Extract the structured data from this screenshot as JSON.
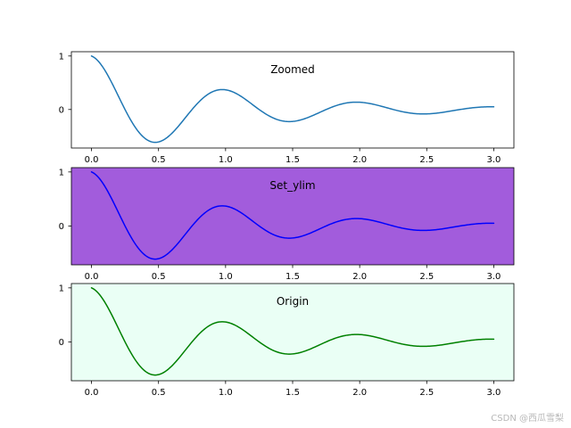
{
  "chart_data": [
    {
      "type": "line",
      "title": "Zoomed",
      "function": "exp(-t) * cos(2*pi*t)",
      "x_range": [
        0.0,
        3.0
      ],
      "xlim": [
        -0.15,
        3.15
      ],
      "ylim": [
        -0.72,
        1.08
      ],
      "x_ticks": [
        0.0,
        0.5,
        1.0,
        1.5,
        2.0,
        2.5,
        3.0
      ],
      "x_tick_labels": [
        "0.0",
        "0.5",
        "1.0",
        "1.5",
        "2.0",
        "2.5",
        "3.0"
      ],
      "y_ticks": [
        0,
        1
      ],
      "y_tick_labels": [
        "0",
        "1"
      ],
      "line_color": "#1f77b4",
      "background_color": "#ffffff",
      "grid": false,
      "series": [
        {
          "x": [
            0.0,
            0.25,
            0.47,
            0.75,
            0.97,
            1.25,
            1.47,
            1.75,
            1.97,
            2.25,
            2.47,
            2.75,
            3.0
          ],
          "values": [
            1.0,
            0.0,
            -0.62,
            0.0,
            0.37,
            0.0,
            -0.23,
            0.0,
            0.14,
            0.0,
            -0.08,
            0.0,
            0.05
          ]
        }
      ]
    },
    {
      "type": "line",
      "title": "Set_ylim",
      "function": "exp(-t) * cos(2*pi*t)",
      "x_range": [
        0.0,
        3.0
      ],
      "xlim": [
        -0.15,
        3.15
      ],
      "ylim": [
        -0.72,
        1.08
      ],
      "x_ticks": [
        0.0,
        0.5,
        1.0,
        1.5,
        2.0,
        2.5,
        3.0
      ],
      "x_tick_labels": [
        "0.0",
        "0.5",
        "1.0",
        "1.5",
        "2.0",
        "2.5",
        "3.0"
      ],
      "y_ticks": [
        0,
        1
      ],
      "y_tick_labels": [
        "0",
        "1"
      ],
      "line_color": "#0000ff",
      "background_color": "#a25cdc",
      "grid": false,
      "series": [
        {
          "x": [
            0.0,
            0.25,
            0.47,
            0.75,
            0.97,
            1.25,
            1.47,
            1.75,
            1.97,
            2.25,
            2.47,
            2.75,
            3.0
          ],
          "values": [
            1.0,
            0.0,
            -0.62,
            0.0,
            0.37,
            0.0,
            -0.23,
            0.0,
            0.14,
            0.0,
            -0.08,
            0.0,
            0.05
          ]
        }
      ]
    },
    {
      "type": "line",
      "title": "Origin",
      "function": "exp(-t) * cos(2*pi*t)",
      "x_range": [
        0.0,
        3.0
      ],
      "xlim": [
        -0.15,
        3.15
      ],
      "ylim": [
        -0.72,
        1.08
      ],
      "x_ticks": [
        0.0,
        0.5,
        1.0,
        1.5,
        2.0,
        2.5,
        3.0
      ],
      "x_tick_labels": [
        "0.0",
        "0.5",
        "1.0",
        "1.5",
        "2.0",
        "2.5",
        "3.0"
      ],
      "y_ticks": [
        0,
        1
      ],
      "y_tick_labels": [
        "0",
        "1"
      ],
      "line_color": "#008000",
      "background_color": "#eafff5",
      "grid": false,
      "series": [
        {
          "x": [
            0.0,
            0.25,
            0.47,
            0.75,
            0.97,
            1.25,
            1.47,
            1.75,
            1.97,
            2.25,
            2.47,
            2.75,
            3.0
          ],
          "values": [
            1.0,
            0.0,
            -0.62,
            0.0,
            0.37,
            0.0,
            -0.23,
            0.0,
            0.14,
            0.0,
            -0.08,
            0.0,
            0.05
          ]
        }
      ]
    }
  ],
  "watermark": {
    "text": "CSDN @西瓜雪梨"
  }
}
